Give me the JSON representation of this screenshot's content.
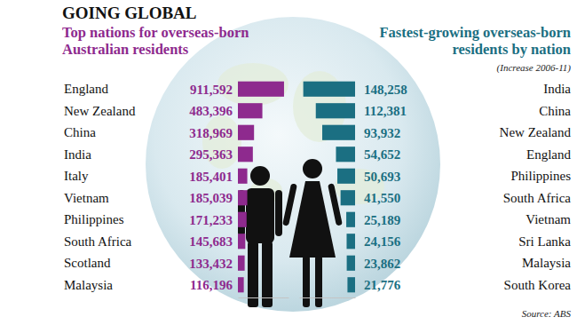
{
  "title": "GOING GLOBAL",
  "source": "Source: ABS",
  "chart_data": [
    {
      "type": "bar",
      "orientation": "horizontal",
      "title": "Top nations for overseas-born\nAustralian residents",
      "categories": [
        "England",
        "New Zealand",
        "China",
        "India",
        "Italy",
        "Vietnam",
        "Philippines",
        "South Africa",
        "Scotland",
        "Malaysia"
      ],
      "values": [
        911592,
        483396,
        318969,
        295363,
        185401,
        185039,
        171233,
        145683,
        133432,
        116196
      ],
      "value_labels": [
        "911,592",
        "483,396",
        "318,969",
        "295,363",
        "185,401",
        "185,039",
        "171,233",
        "145,683",
        "133,432",
        "116,196"
      ],
      "data_labels": true,
      "color": "#8e2a8e",
      "xlim": [
        0,
        1000000
      ],
      "tick_labels": false
    },
    {
      "type": "bar",
      "orientation": "horizontal",
      "title": "Fastest-growing overseas-born\nresidents by nation",
      "subtitle": "(Increase 2006-11)",
      "categories": [
        "India",
        "China",
        "New Zealand",
        "England",
        "Philippines",
        "South Africa",
        "Vietnam",
        "Sri Lanka",
        "Malaysia",
        "South Korea"
      ],
      "values": [
        148258,
        112381,
        93932,
        54652,
        50693,
        41550,
        25189,
        24156,
        23862,
        21776
      ],
      "value_labels": [
        "148,258",
        "112,381",
        "93,932",
        "54,652",
        "50,693",
        "41,550",
        "25,189",
        "24,156",
        "23,862",
        "21,776"
      ],
      "data_labels": true,
      "color": "#1b6f82",
      "xlim": [
        0,
        160000
      ],
      "tick_labels": false
    }
  ]
}
